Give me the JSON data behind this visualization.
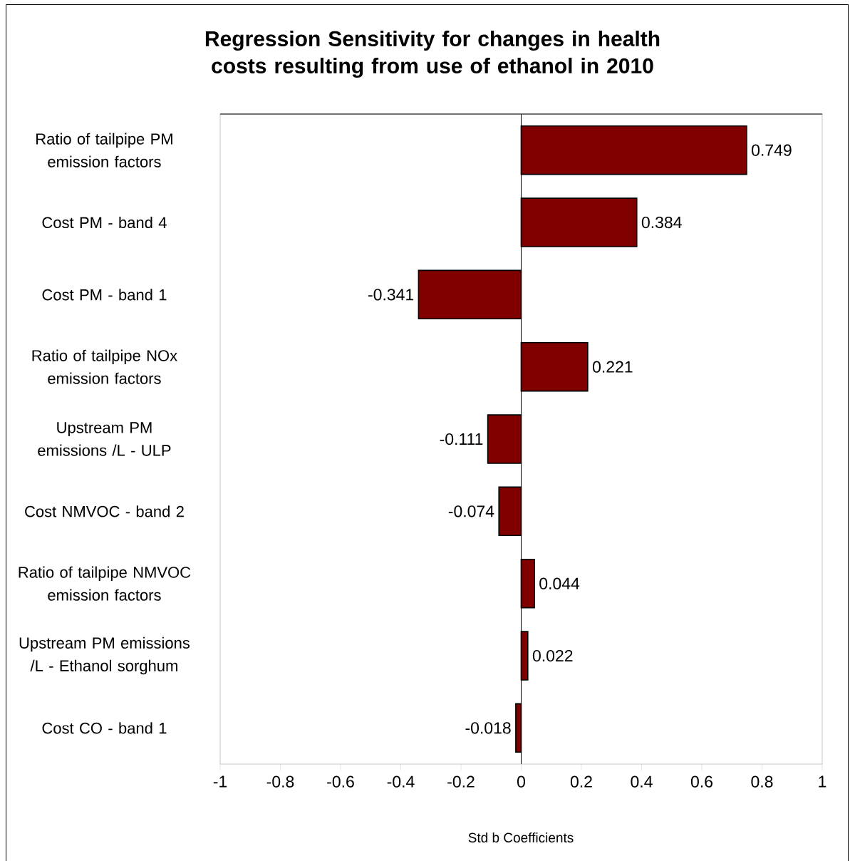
{
  "chart_data": {
    "type": "bar",
    "orientation": "horizontal",
    "title": "Regression Sensitivity for changes in health costs resulting from use of ethanol in 2010",
    "xlabel": "Std b Coefficients",
    "categories": [
      "Ratio of tailpipe PM emission factors",
      "Cost PM - band 4",
      "Cost PM - band 1",
      "Ratio of tailpipe NOx emission factors",
      "Upstream PM emissions /L - ULP",
      "Cost NMVOC - band 2",
      "Ratio of tailpipe NMVOC emission factors",
      "Upstream PM emissions /L - Ethanol sorghum",
      "Cost CO - band 1"
    ],
    "values": [
      0.749,
      0.384,
      -0.341,
      0.221,
      -0.111,
      -0.074,
      0.044,
      0.022,
      -0.018
    ],
    "color": "#800000",
    "data_labels": true,
    "xlim": [
      -1,
      1
    ],
    "xticks": [
      -1,
      -0.8,
      -0.6,
      -0.4,
      -0.2,
      0,
      0.2,
      0.4,
      0.6,
      0.8,
      1
    ]
  }
}
